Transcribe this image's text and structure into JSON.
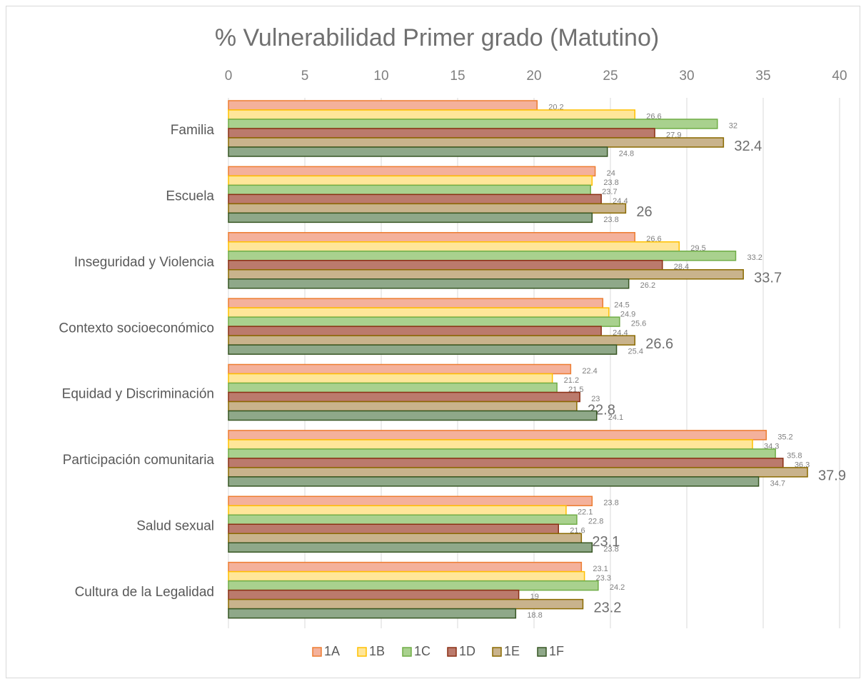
{
  "chart_data": {
    "type": "bar",
    "orientation": "horizontal",
    "title": "% Vulnerabilidad Primer grado (Matutino)",
    "categories": [
      "Familia",
      "Escuela",
      "Inseguridad y Violencia",
      "Contexto socioeconómico",
      "Equidad y Discriminación",
      "Participación comunitaria",
      "Salud sexual",
      "Cultura de la Legalidad"
    ],
    "series": [
      {
        "name": "1A",
        "color": "#f4b19b",
        "stroke": "#ed7d31",
        "values": [
          20.2,
          24,
          26.6,
          24.5,
          22.4,
          35.2,
          23.8,
          23.1
        ]
      },
      {
        "name": "1B",
        "color": "#ffe699",
        "stroke": "#ffc000",
        "values": [
          26.6,
          23.8,
          29.5,
          24.9,
          21.2,
          34.3,
          22.1,
          23.3
        ]
      },
      {
        "name": "1C",
        "color": "#a9d18e",
        "stroke": "#70ad47",
        "values": [
          32,
          23.7,
          33.2,
          25.6,
          21.5,
          35.8,
          22.8,
          24.2
        ]
      },
      {
        "name": "1D",
        "color": "#bb7a6c",
        "stroke": "#8b2f14",
        "values": [
          27.9,
          24.4,
          28.4,
          24.4,
          23,
          36.3,
          21.6,
          19
        ]
      },
      {
        "name": "1E",
        "color": "#c9b38c",
        "stroke": "#8a6a00",
        "values": [
          32.4,
          26,
          33.7,
          26.6,
          22.8,
          37.9,
          23.1,
          23.2
        ]
      },
      {
        "name": "1F",
        "color": "#8fa889",
        "stroke": "#375623",
        "values": [
          24.8,
          23.8,
          26.2,
          25.4,
          24.1,
          34.7,
          23.8,
          18.8
        ]
      }
    ],
    "xlim": [
      0,
      40
    ],
    "xticks": [
      0,
      5,
      10,
      15,
      20,
      25,
      30,
      35,
      40
    ],
    "grid": true,
    "legend": "bottom"
  }
}
